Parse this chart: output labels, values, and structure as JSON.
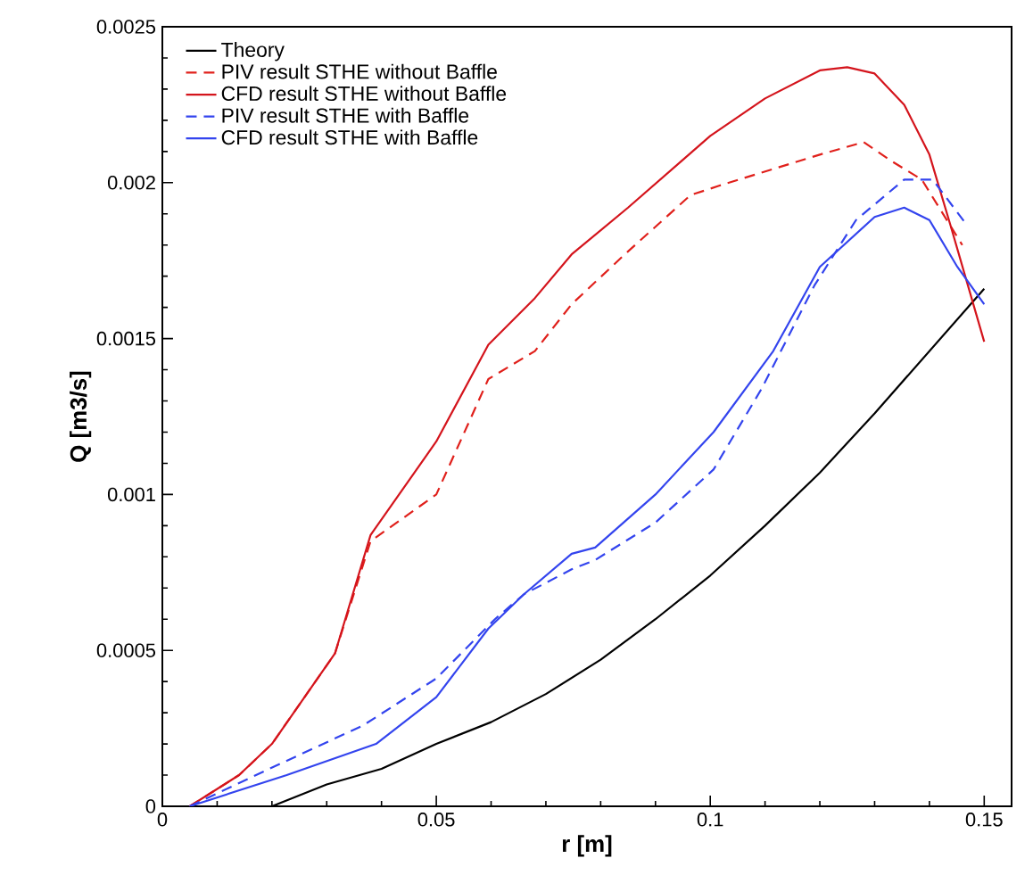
{
  "chart_data": {
    "type": "line",
    "xlabel": "r [m]",
    "ylabel": "Q [m3/s]",
    "xlim": [
      0,
      0.155
    ],
    "ylim": [
      0,
      0.0025
    ],
    "xticks": [
      0,
      0.05,
      0.1,
      0.15
    ],
    "yticks": [
      0,
      0.0005,
      0.001,
      0.0015,
      0.002,
      0.0025
    ],
    "grid": false,
    "legend": "top left",
    "marker": "none",
    "series": [
      {
        "name": "Theory",
        "color": "#000000",
        "line_style": "solid",
        "x": [
          0.005,
          0.02,
          0.03,
          0.04,
          0.05,
          0.06,
          0.07,
          0.08,
          0.09,
          0.1,
          0.11,
          0.12,
          0.13,
          0.14,
          0.15
        ],
        "values": [
          0,
          0,
          7e-05,
          0.00012,
          0.0002,
          0.00027,
          0.00036,
          0.00047,
          0.0006,
          0.00074,
          0.0009,
          0.00107,
          0.00126,
          0.00146,
          0.00166
        ]
      },
      {
        "name": "PIV result STHE without Baffle",
        "color": "#e0201b",
        "line_style": "dashed",
        "x": [
          0.005,
          0.014,
          0.02,
          0.0315,
          0.038,
          0.05,
          0.0595,
          0.068,
          0.0747,
          0.0844,
          0.0964,
          0.1016,
          0.12,
          0.128,
          0.133,
          0.1386,
          0.146
        ],
        "values": [
          0,
          0.0001,
          0.0002,
          0.00049,
          0.00085,
          0.001,
          0.00137,
          0.00146,
          0.00161,
          0.00177,
          0.00196,
          0.00199,
          0.00209,
          0.00213,
          0.00207,
          0.00201,
          0.0018
        ]
      },
      {
        "name": "CFD result STHE without Baffle",
        "color": "#d4141c",
        "line_style": "solid",
        "x": [
          0.005,
          0.014,
          0.02,
          0.0315,
          0.038,
          0.05,
          0.0595,
          0.068,
          0.0747,
          0.085,
          0.1,
          0.11,
          0.12,
          0.125,
          0.13,
          0.1354,
          0.14,
          0.1439,
          0.15
        ],
        "values": [
          0,
          0.0001,
          0.0002,
          0.00049,
          0.00087,
          0.00117,
          0.00148,
          0.00163,
          0.00177,
          0.00192,
          0.00215,
          0.00227,
          0.00236,
          0.00237,
          0.00235,
          0.00225,
          0.00209,
          0.00186,
          0.00149
        ]
      },
      {
        "name": "PIV result STHE with Baffle",
        "color": "#3344ee",
        "line_style": "dashed",
        "x": [
          0.005,
          0.0195,
          0.0367,
          0.05,
          0.0607,
          0.066,
          0.0747,
          0.079,
          0.09,
          0.1006,
          0.1094,
          0.119,
          0.1266,
          0.1354,
          0.1406,
          0.147
        ],
        "values": [
          0,
          0.00012,
          0.00026,
          0.00041,
          0.0006,
          0.00068,
          0.00076,
          0.00079,
          0.00091,
          0.00108,
          0.00134,
          0.00167,
          0.00188,
          0.00201,
          0.00201,
          0.00186
        ]
      },
      {
        "name": "CFD result STHE with Baffle",
        "color": "#3344ee",
        "line_style": "solid",
        "x": [
          0.005,
          0.0227,
          0.039,
          0.05,
          0.0595,
          0.066,
          0.0747,
          0.079,
          0.09,
          0.1006,
          0.1115,
          0.12,
          0.13,
          0.1354,
          0.14,
          0.1451,
          0.15
        ],
        "values": [
          0,
          0.0001,
          0.0002,
          0.00035,
          0.00057,
          0.00068,
          0.00081,
          0.00083,
          0.001,
          0.0012,
          0.00146,
          0.00173,
          0.00189,
          0.00192,
          0.00188,
          0.00173,
          0.00161
        ]
      }
    ]
  }
}
